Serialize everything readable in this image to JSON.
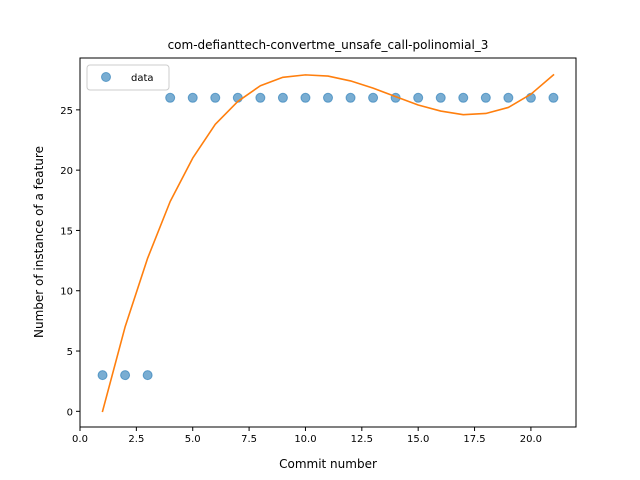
{
  "chart_data": {
    "type": "scatter",
    "title": "com-defianttech-convertme_unsafe_call-polinomial_3",
    "xlabel": "Commit number",
    "ylabel": "Number of instance of a feature",
    "xlim": [
      0.0,
      22.0
    ],
    "ylim": [
      -1.3,
      29.3
    ],
    "x_ticks": [
      0.0,
      2.5,
      5.0,
      7.5,
      10.0,
      12.5,
      15.0,
      17.5,
      20.0
    ],
    "x_tick_labels": [
      "0.0",
      "2.5",
      "5.0",
      "7.5",
      "10.0",
      "12.5",
      "15.0",
      "17.5",
      "20.0"
    ],
    "y_ticks": [
      0,
      5,
      10,
      15,
      20,
      25
    ],
    "y_tick_labels": [
      "0",
      "5",
      "10",
      "15",
      "20",
      "25"
    ],
    "grid": false,
    "legend_position": "top-left",
    "series": [
      {
        "name": "data",
        "kind": "scatter",
        "color": "#1f77b4",
        "x": [
          1,
          2,
          3,
          4,
          5,
          6,
          7,
          8,
          9,
          10,
          11,
          12,
          13,
          14,
          15,
          16,
          17,
          18,
          19,
          20,
          21
        ],
        "y": [
          3,
          3,
          3,
          26,
          26,
          26,
          26,
          26,
          26,
          26,
          26,
          26,
          26,
          26,
          26,
          26,
          26,
          26,
          26,
          26,
          26
        ]
      },
      {
        "kind": "line",
        "color": "#ff7f0e",
        "x": [
          1,
          2,
          3,
          4,
          5,
          6,
          7,
          8,
          9,
          10,
          11,
          12,
          13,
          14,
          15,
          16,
          17,
          18,
          19,
          20,
          21
        ],
        "y": [
          0.0,
          7.0,
          12.7,
          17.4,
          21.0,
          23.8,
          25.7,
          27.0,
          27.7,
          27.9,
          27.8,
          27.4,
          26.8,
          26.1,
          25.4,
          24.9,
          24.6,
          24.7,
          25.2,
          26.3,
          27.9
        ]
      }
    ]
  }
}
